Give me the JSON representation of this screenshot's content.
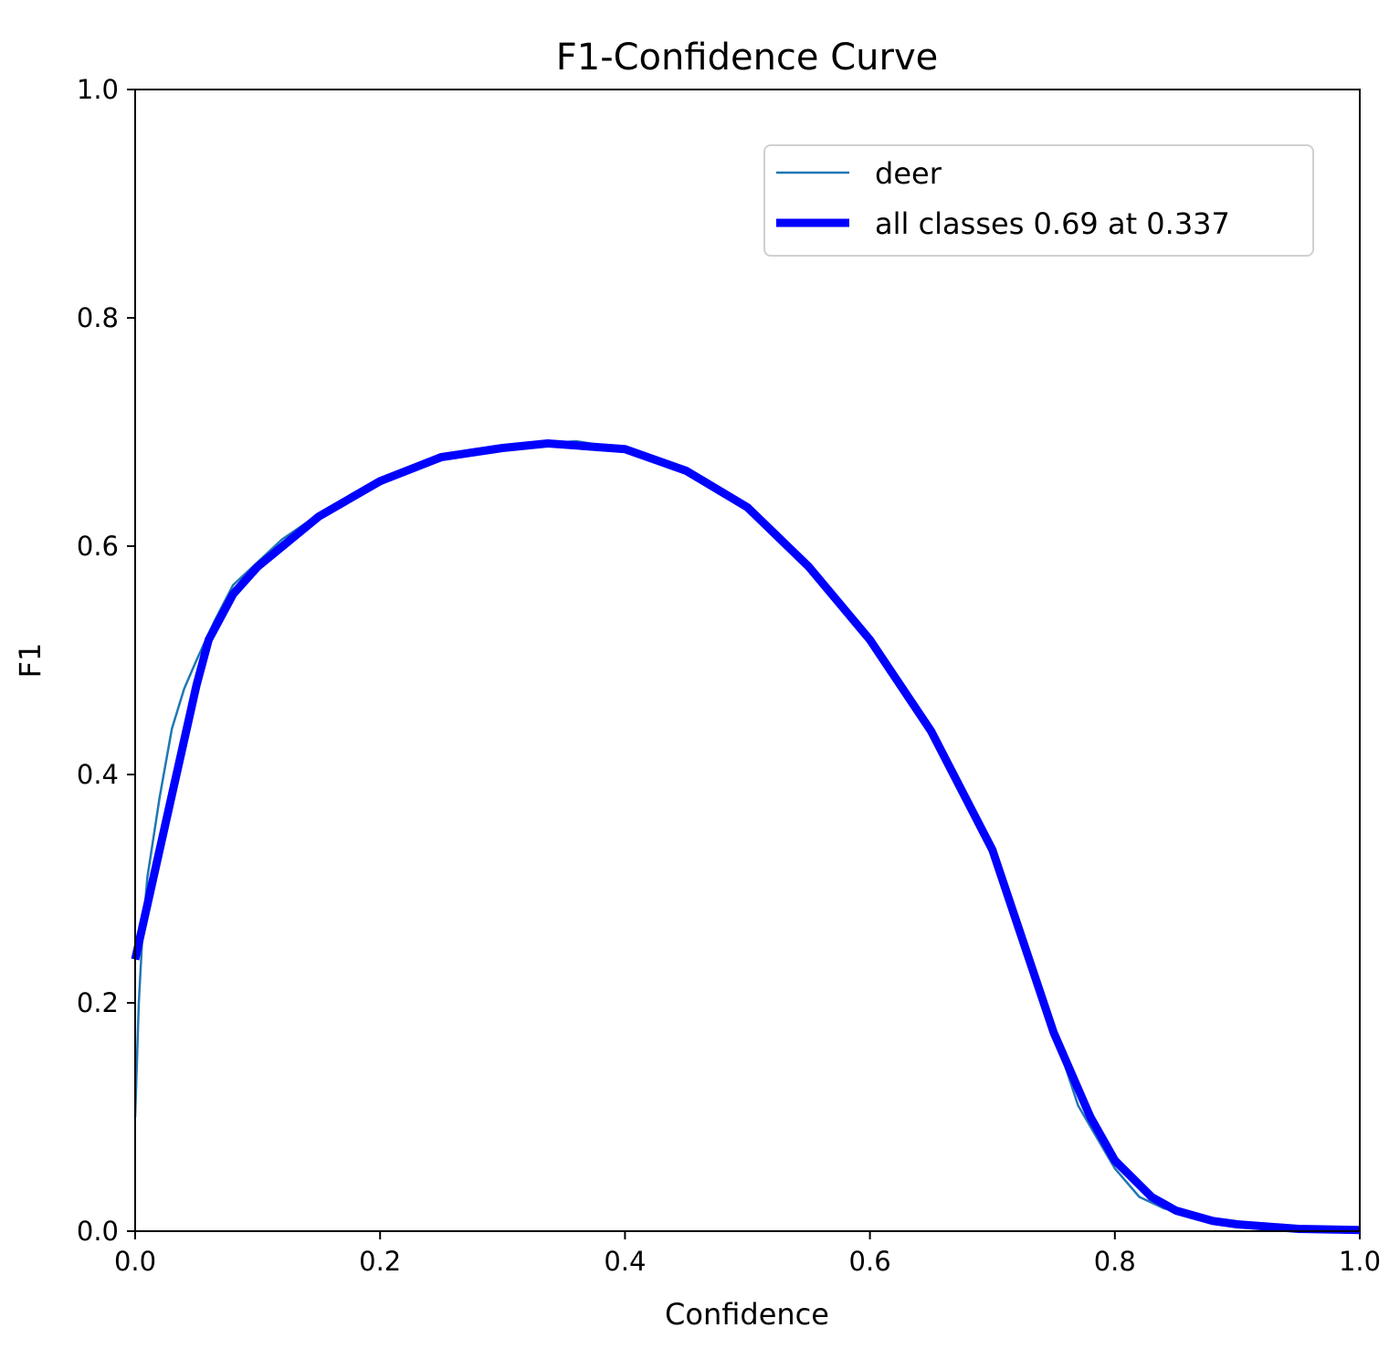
{
  "chart_data": {
    "type": "line",
    "title": "F1-Confidence Curve",
    "xlabel": "Confidence",
    "ylabel": "F1",
    "xlim": [
      0,
      1
    ],
    "ylim": [
      0,
      1
    ],
    "xticks": [
      "0.0",
      "0.2",
      "0.4",
      "0.6",
      "0.8",
      "1.0"
    ],
    "yticks": [
      "0.0",
      "0.2",
      "0.4",
      "0.6",
      "0.8",
      "1.0"
    ],
    "grid": false,
    "legend_placement": "top-right",
    "series": [
      {
        "name": "deer",
        "color": "#1f77b4",
        "x": [
          0.0,
          0.003,
          0.006,
          0.01,
          0.02,
          0.03,
          0.04,
          0.05,
          0.065,
          0.08,
          0.1,
          0.12,
          0.15,
          0.2,
          0.25,
          0.3,
          0.337,
          0.36,
          0.4,
          0.45,
          0.5,
          0.55,
          0.6,
          0.65,
          0.7,
          0.75,
          0.77,
          0.8,
          0.82,
          0.84,
          0.86,
          0.9,
          0.95,
          1.0
        ],
        "y": [
          0.1,
          0.2,
          0.26,
          0.31,
          0.38,
          0.44,
          0.475,
          0.5,
          0.535,
          0.566,
          0.586,
          0.606,
          0.628,
          0.657,
          0.678,
          0.686,
          0.69,
          0.692,
          0.685,
          0.666,
          0.634,
          0.585,
          0.518,
          0.44,
          0.334,
          0.175,
          0.11,
          0.055,
          0.03,
          0.02,
          0.015,
          0.006,
          0.002,
          0.001
        ]
      },
      {
        "name": "all classes 0.69 at 0.337",
        "color": "#0000ff",
        "x": [
          0.0,
          0.01,
          0.03,
          0.05,
          0.06,
          0.08,
          0.1,
          0.15,
          0.2,
          0.25,
          0.3,
          0.337,
          0.4,
          0.45,
          0.5,
          0.55,
          0.6,
          0.65,
          0.7,
          0.75,
          0.78,
          0.8,
          0.83,
          0.85,
          0.88,
          0.9,
          0.95,
          1.0
        ],
        "y": [
          0.238,
          0.286,
          0.382,
          0.478,
          0.518,
          0.558,
          0.582,
          0.626,
          0.657,
          0.678,
          0.686,
          0.69,
          0.685,
          0.666,
          0.634,
          0.582,
          0.518,
          0.438,
          0.334,
          0.174,
          0.1,
          0.062,
          0.03,
          0.018,
          0.009,
          0.006,
          0.002,
          0.001
        ]
      }
    ]
  }
}
